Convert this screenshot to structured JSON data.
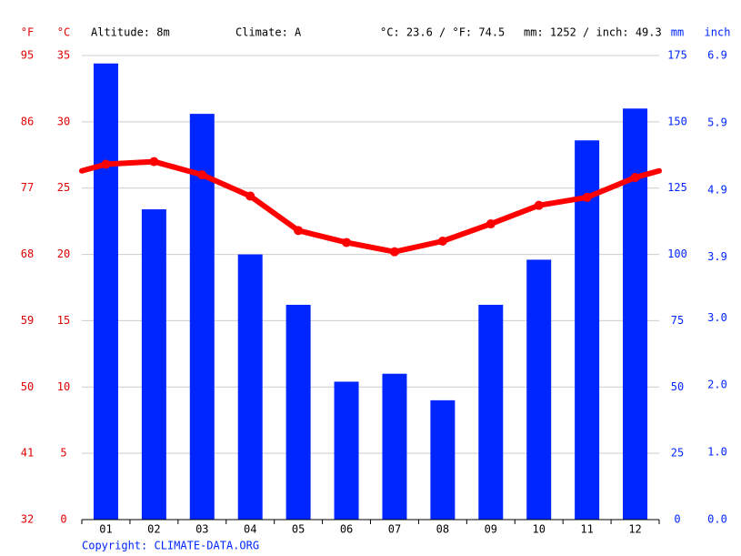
{
  "chart_data": {
    "type": "combo",
    "header": [
      "Altitude: 8m",
      "Climate: A",
      "°C: 23.6 / °F: 74.5",
      "mm: 1252 / inch: 49.3"
    ],
    "copyright": "Copyright: CLIMATE-DATA.ORG",
    "categories": [
      "01",
      "02",
      "03",
      "04",
      "05",
      "06",
      "07",
      "08",
      "09",
      "10",
      "11",
      "12"
    ],
    "grid": true,
    "axes": [
      {
        "label": "°F",
        "side": "left",
        "color": "#e00000",
        "lim": [
          32,
          95
        ],
        "ticks": [
          32,
          41,
          50,
          59,
          68,
          77,
          86,
          95
        ]
      },
      {
        "label": "°C",
        "side": "left",
        "color": "#e00000",
        "lim": [
          0,
          35
        ],
        "ticks": [
          0,
          5,
          10,
          15,
          20,
          25,
          30,
          35
        ]
      },
      {
        "label": "mm",
        "side": "right",
        "color": "#0026ff",
        "lim": [
          0,
          175
        ],
        "ticks": [
          0,
          25,
          50,
          75,
          100,
          125,
          150,
          175
        ]
      },
      {
        "label": "inch",
        "side": "right",
        "color": "#0026ff",
        "lim": [
          0,
          6.9
        ],
        "ticks": [
          {
            "value": 0,
            "label": "0.0"
          },
          {
            "value": 1,
            "label": "1.0"
          },
          {
            "value": 2,
            "label": "2.0"
          },
          {
            "value": 3,
            "label": "3.0"
          },
          3.9,
          4.9,
          5.9,
          6.9
        ]
      }
    ],
    "series": [
      {
        "type": "bar",
        "axis": 2,
        "color": "#0026ff",
        "values": [
          172,
          117,
          153,
          100,
          81,
          52,
          55,
          45,
          81,
          98,
          143,
          155
        ]
      },
      {
        "type": "line",
        "axis": 1,
        "color": "#ff0000",
        "values": [
          26.8,
          27.0,
          26.0,
          24.4,
          21.8,
          20.9,
          20.2,
          21.0,
          22.3,
          23.7,
          24.3,
          25.8
        ]
      }
    ]
  }
}
